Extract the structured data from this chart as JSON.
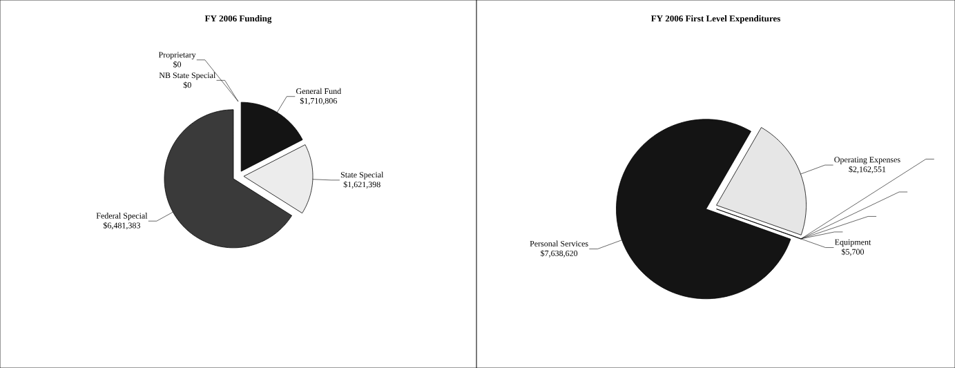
{
  "chart_data": [
    {
      "type": "pie",
      "title": "FY 2006 Funding",
      "categories": [
        "General Fund",
        "State Special",
        "Federal Special",
        "NB State Special",
        "Proprietary"
      ],
      "values": [
        1710806,
        1621398,
        6481383,
        0,
        0
      ],
      "colors": [
        "#141414",
        "#ececec",
        "#3a3a3a",
        "#808080",
        "#808080"
      ],
      "value_labels": [
        "$1,710,806",
        "$1,621,398",
        "$6,481,383",
        "$0",
        "$0"
      ]
    },
    {
      "type": "pie",
      "title": "FY 2006 First Level Expenditures",
      "categories": [
        "Operating Expenses",
        null,
        null,
        null,
        null,
        "Equipment",
        "Personal Services"
      ],
      "values": [
        2162551,
        0,
        0,
        0,
        0,
        5700,
        7638620
      ],
      "colors": [
        "#e6e6e6",
        "#808080",
        "#808080",
        "#808080",
        "#808080",
        "#808080",
        "#141414"
      ],
      "value_labels": [
        "$2,162,551",
        null,
        null,
        null,
        null,
        "$5,700",
        "$7,638,620"
      ]
    }
  ]
}
